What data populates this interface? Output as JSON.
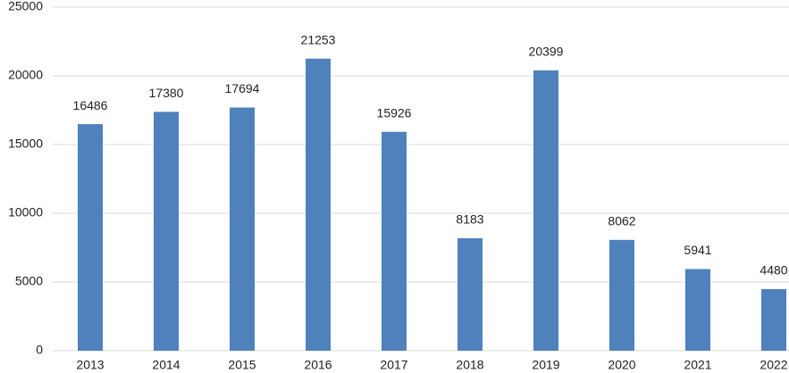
{
  "chart_data": {
    "type": "bar",
    "categories": [
      "2013",
      "2014",
      "2015",
      "2016",
      "2017",
      "2018",
      "2019",
      "2020",
      "2021",
      "2022"
    ],
    "values": [
      16486,
      17380,
      17694,
      21253,
      15926,
      8183,
      20399,
      8062,
      5941,
      4480
    ],
    "color": "#4f81bd",
    "ylim": [
      0,
      25000
    ],
    "yticks": [
      0,
      5000,
      10000,
      15000,
      20000,
      25000
    ],
    "grid": true
  }
}
